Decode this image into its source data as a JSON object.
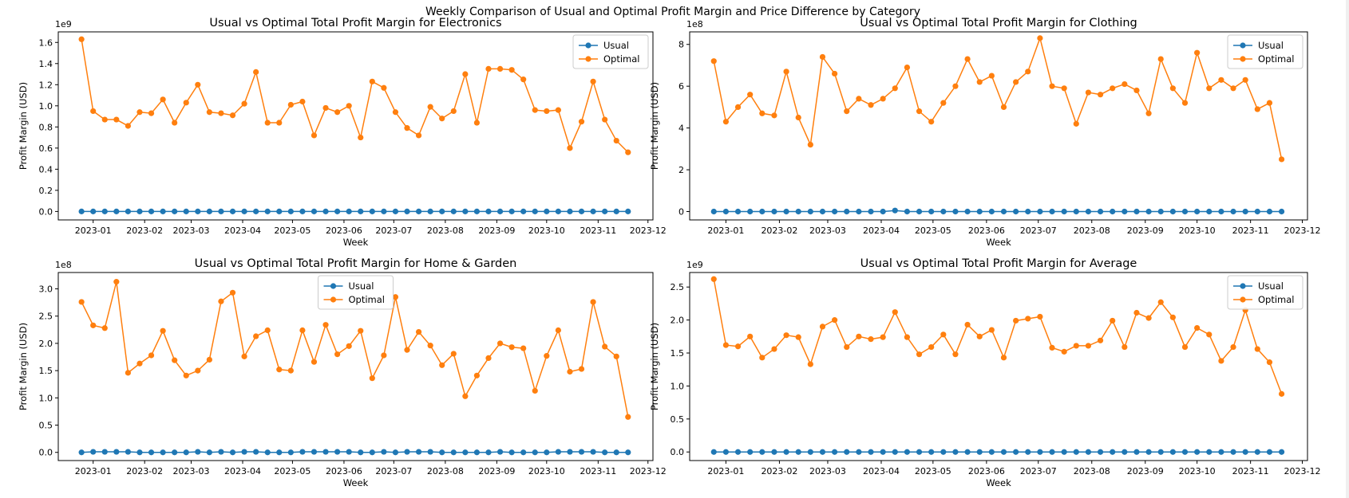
{
  "figure": {
    "suptitle": "Weekly Comparison of Usual and Optimal Profit Margin and Price Difference by Category"
  },
  "colors": {
    "usual": "#1f77b4",
    "optimal": "#ff7f0e"
  },
  "chart_data": [
    {
      "type": "line",
      "title": "Usual vs Optimal Total Profit Margin for Electronics",
      "xlabel": "Week",
      "ylabel": "Profit Margin (USD)",
      "offset_text": "1e9",
      "x_range": [
        "2022-12-11",
        "2023-12-04"
      ],
      "x_ticks": [
        "2023-01",
        "2023-02",
        "2023-03",
        "2023-04",
        "2023-05",
        "2023-06",
        "2023-07",
        "2023-08",
        "2023-09",
        "2023-10",
        "2023-11",
        "2023-12"
      ],
      "ylim": [
        -0.08,
        1.7
      ],
      "yticks": [
        0.0,
        0.2,
        0.4,
        0.6,
        0.8,
        1.0,
        1.2,
        1.4,
        1.6
      ],
      "legend_position": "upper right",
      "series": [
        {
          "name": "Usual",
          "values": [
            0.0,
            0.0,
            0.0,
            0.0,
            0.0,
            0.0,
            0.0,
            0.0,
            0.0,
            0.0,
            0.0,
            0.0,
            0.0,
            0.0,
            0.0,
            0.0,
            0.0,
            0.0,
            0.0,
            0.0,
            0.0,
            0.0,
            0.0,
            0.0,
            0.0,
            0.0,
            0.0,
            0.0,
            0.0,
            0.0,
            0.0,
            0.0,
            0.0,
            0.0,
            0.0,
            0.0,
            0.0,
            0.0,
            0.0,
            0.0,
            0.0,
            0.0,
            0.0,
            0.0,
            0.0,
            0.0,
            0.0,
            0.0
          ]
        },
        {
          "name": "Optimal",
          "values": [
            1.63,
            0.95,
            0.87,
            0.87,
            0.81,
            0.94,
            0.93,
            1.06,
            0.84,
            1.03,
            1.2,
            0.94,
            0.93,
            0.91,
            1.02,
            1.32,
            0.84,
            0.84,
            1.01,
            1.04,
            0.72,
            0.98,
            0.94,
            1.0,
            0.7,
            1.23,
            1.17,
            0.94,
            0.79,
            0.72,
            0.99,
            0.88,
            0.95,
            1.3,
            0.84,
            1.35,
            1.35,
            1.34,
            1.25,
            0.96,
            0.95,
            0.96,
            0.6,
            0.85,
            1.23,
            0.87,
            0.67,
            0.56
          ]
        }
      ]
    },
    {
      "type": "line",
      "title": "Usual vs Optimal Total Profit Margin for Clothing",
      "xlabel": "Week",
      "ylabel": "Profit Margin (USD)",
      "offset_text": "1e8",
      "x_range": [
        "2022-12-11",
        "2023-12-04"
      ],
      "x_ticks": [
        "2023-01",
        "2023-02",
        "2023-03",
        "2023-04",
        "2023-05",
        "2023-06",
        "2023-07",
        "2023-08",
        "2023-09",
        "2023-10",
        "2023-11",
        "2023-12"
      ],
      "ylim": [
        -0.4,
        8.6
      ],
      "yticks": [
        0,
        2,
        4,
        6,
        8
      ],
      "legend_position": "upper right",
      "series": [
        {
          "name": "Usual",
          "values": [
            0.0,
            0.0,
            0.0,
            0.0,
            0.0,
            0.0,
            0.0,
            0.0,
            0.0,
            0.0,
            0.0,
            0.0,
            0.0,
            0.0,
            0.0,
            0.05,
            0.0,
            0.0,
            0.0,
            0.0,
            0.0,
            0.0,
            0.0,
            0.0,
            0.0,
            0.0,
            0.0,
            0.0,
            0.0,
            0.0,
            0.0,
            0.0,
            0.0,
            0.0,
            0.0,
            0.0,
            0.0,
            0.0,
            0.0,
            0.0,
            0.0,
            0.0,
            0.0,
            0.0,
            0.0,
            0.0,
            0.0,
            0.0
          ]
        },
        {
          "name": "Optimal",
          "values": [
            7.2,
            4.3,
            5.0,
            5.6,
            4.7,
            4.6,
            6.7,
            4.5,
            3.2,
            7.4,
            6.6,
            4.8,
            5.4,
            5.1,
            5.4,
            5.9,
            6.9,
            4.8,
            4.3,
            5.2,
            6.0,
            7.3,
            6.2,
            6.5,
            5.0,
            6.2,
            6.7,
            8.3,
            6.0,
            5.9,
            4.2,
            5.7,
            5.6,
            5.9,
            6.1,
            5.8,
            4.7,
            7.3,
            5.9,
            5.2,
            7.6,
            5.9,
            6.3,
            5.9,
            6.3,
            4.9,
            5.2,
            2.5
          ]
        }
      ]
    },
    {
      "type": "line",
      "title": "Usual vs Optimal Total Profit Margin for Home & Garden",
      "xlabel": "Week",
      "ylabel": "Profit Margin (USD)",
      "offset_text": "1e8",
      "x_range": [
        "2022-12-11",
        "2023-12-04"
      ],
      "x_ticks": [
        "2023-01",
        "2023-02",
        "2023-03",
        "2023-04",
        "2023-05",
        "2023-06",
        "2023-07",
        "2023-08",
        "2023-09",
        "2023-10",
        "2023-11",
        "2023-12"
      ],
      "ylim": [
        -0.15,
        3.3
      ],
      "yticks": [
        0.0,
        0.5,
        1.0,
        1.5,
        2.0,
        2.5,
        3.0
      ],
      "legend_position": "upper center",
      "series": [
        {
          "name": "Usual",
          "values": [
            0.0,
            0.01,
            0.01,
            0.01,
            0.01,
            0.0,
            0.0,
            0.0,
            0.0,
            0.0,
            0.01,
            0.0,
            0.01,
            0.0,
            0.01,
            0.01,
            0.0,
            0.0,
            0.0,
            0.01,
            0.01,
            0.01,
            0.01,
            0.01,
            0.0,
            0.0,
            0.01,
            0.0,
            0.01,
            0.01,
            0.01,
            0.0,
            0.0,
            0.0,
            0.0,
            0.0,
            0.01,
            0.0,
            0.0,
            0.0,
            0.0,
            0.01,
            0.01,
            0.01,
            0.01,
            0.0,
            0.0,
            0.0
          ]
        },
        {
          "name": "Optimal",
          "values": [
            2.76,
            2.33,
            2.28,
            3.13,
            1.46,
            1.63,
            1.78,
            2.23,
            1.69,
            1.41,
            1.5,
            1.7,
            2.77,
            2.93,
            1.76,
            2.13,
            2.24,
            1.52,
            1.5,
            2.24,
            1.66,
            2.34,
            1.8,
            1.95,
            2.23,
            1.36,
            1.78,
            2.85,
            1.88,
            2.21,
            1.96,
            1.6,
            1.81,
            1.03,
            1.41,
            1.73,
            2.0,
            1.93,
            1.91,
            1.13,
            1.77,
            2.24,
            1.48,
            1.53,
            2.76,
            1.94,
            1.76,
            0.65
          ]
        }
      ]
    },
    {
      "type": "line",
      "title": "Usual vs Optimal Total Profit Margin for Average",
      "xlabel": "Week",
      "ylabel": "Profit Margin (USD)",
      "offset_text": "1e9",
      "x_range": [
        "2022-12-11",
        "2023-12-04"
      ],
      "x_ticks": [
        "2023-01",
        "2023-02",
        "2023-03",
        "2023-04",
        "2023-05",
        "2023-06",
        "2023-07",
        "2023-08",
        "2023-09",
        "2023-10",
        "2023-11",
        "2023-12"
      ],
      "ylim": [
        -0.13,
        2.72
      ],
      "yticks": [
        0.0,
        0.5,
        1.0,
        1.5,
        2.0,
        2.5
      ],
      "legend_position": "upper right",
      "series": [
        {
          "name": "Usual",
          "values": [
            0.0,
            0.0,
            0.0,
            0.0,
            0.0,
            0.0,
            0.0,
            0.0,
            0.0,
            0.0,
            0.0,
            0.0,
            0.0,
            0.0,
            0.0,
            0.0,
            0.0,
            0.0,
            0.0,
            0.0,
            0.0,
            0.0,
            0.0,
            0.0,
            0.0,
            0.0,
            0.0,
            0.0,
            0.0,
            0.0,
            0.0,
            0.0,
            0.0,
            0.0,
            0.0,
            0.0,
            0.0,
            0.0,
            0.0,
            0.0,
            0.0,
            0.0,
            0.0,
            0.0,
            0.0,
            0.0,
            0.0,
            0.0
          ]
        },
        {
          "name": "Optimal",
          "values": [
            2.62,
            1.62,
            1.6,
            1.75,
            1.43,
            1.56,
            1.77,
            1.74,
            1.33,
            1.9,
            2.0,
            1.59,
            1.75,
            1.71,
            1.74,
            2.12,
            1.74,
            1.48,
            1.59,
            1.78,
            1.48,
            1.93,
            1.75,
            1.85,
            1.43,
            1.99,
            2.02,
            2.05,
            1.58,
            1.52,
            1.61,
            1.61,
            1.69,
            1.99,
            1.59,
            2.11,
            2.03,
            2.27,
            2.04,
            1.59,
            1.88,
            1.78,
            1.38,
            1.59,
            2.15,
            1.56,
            1.36,
            0.88
          ]
        }
      ]
    }
  ]
}
